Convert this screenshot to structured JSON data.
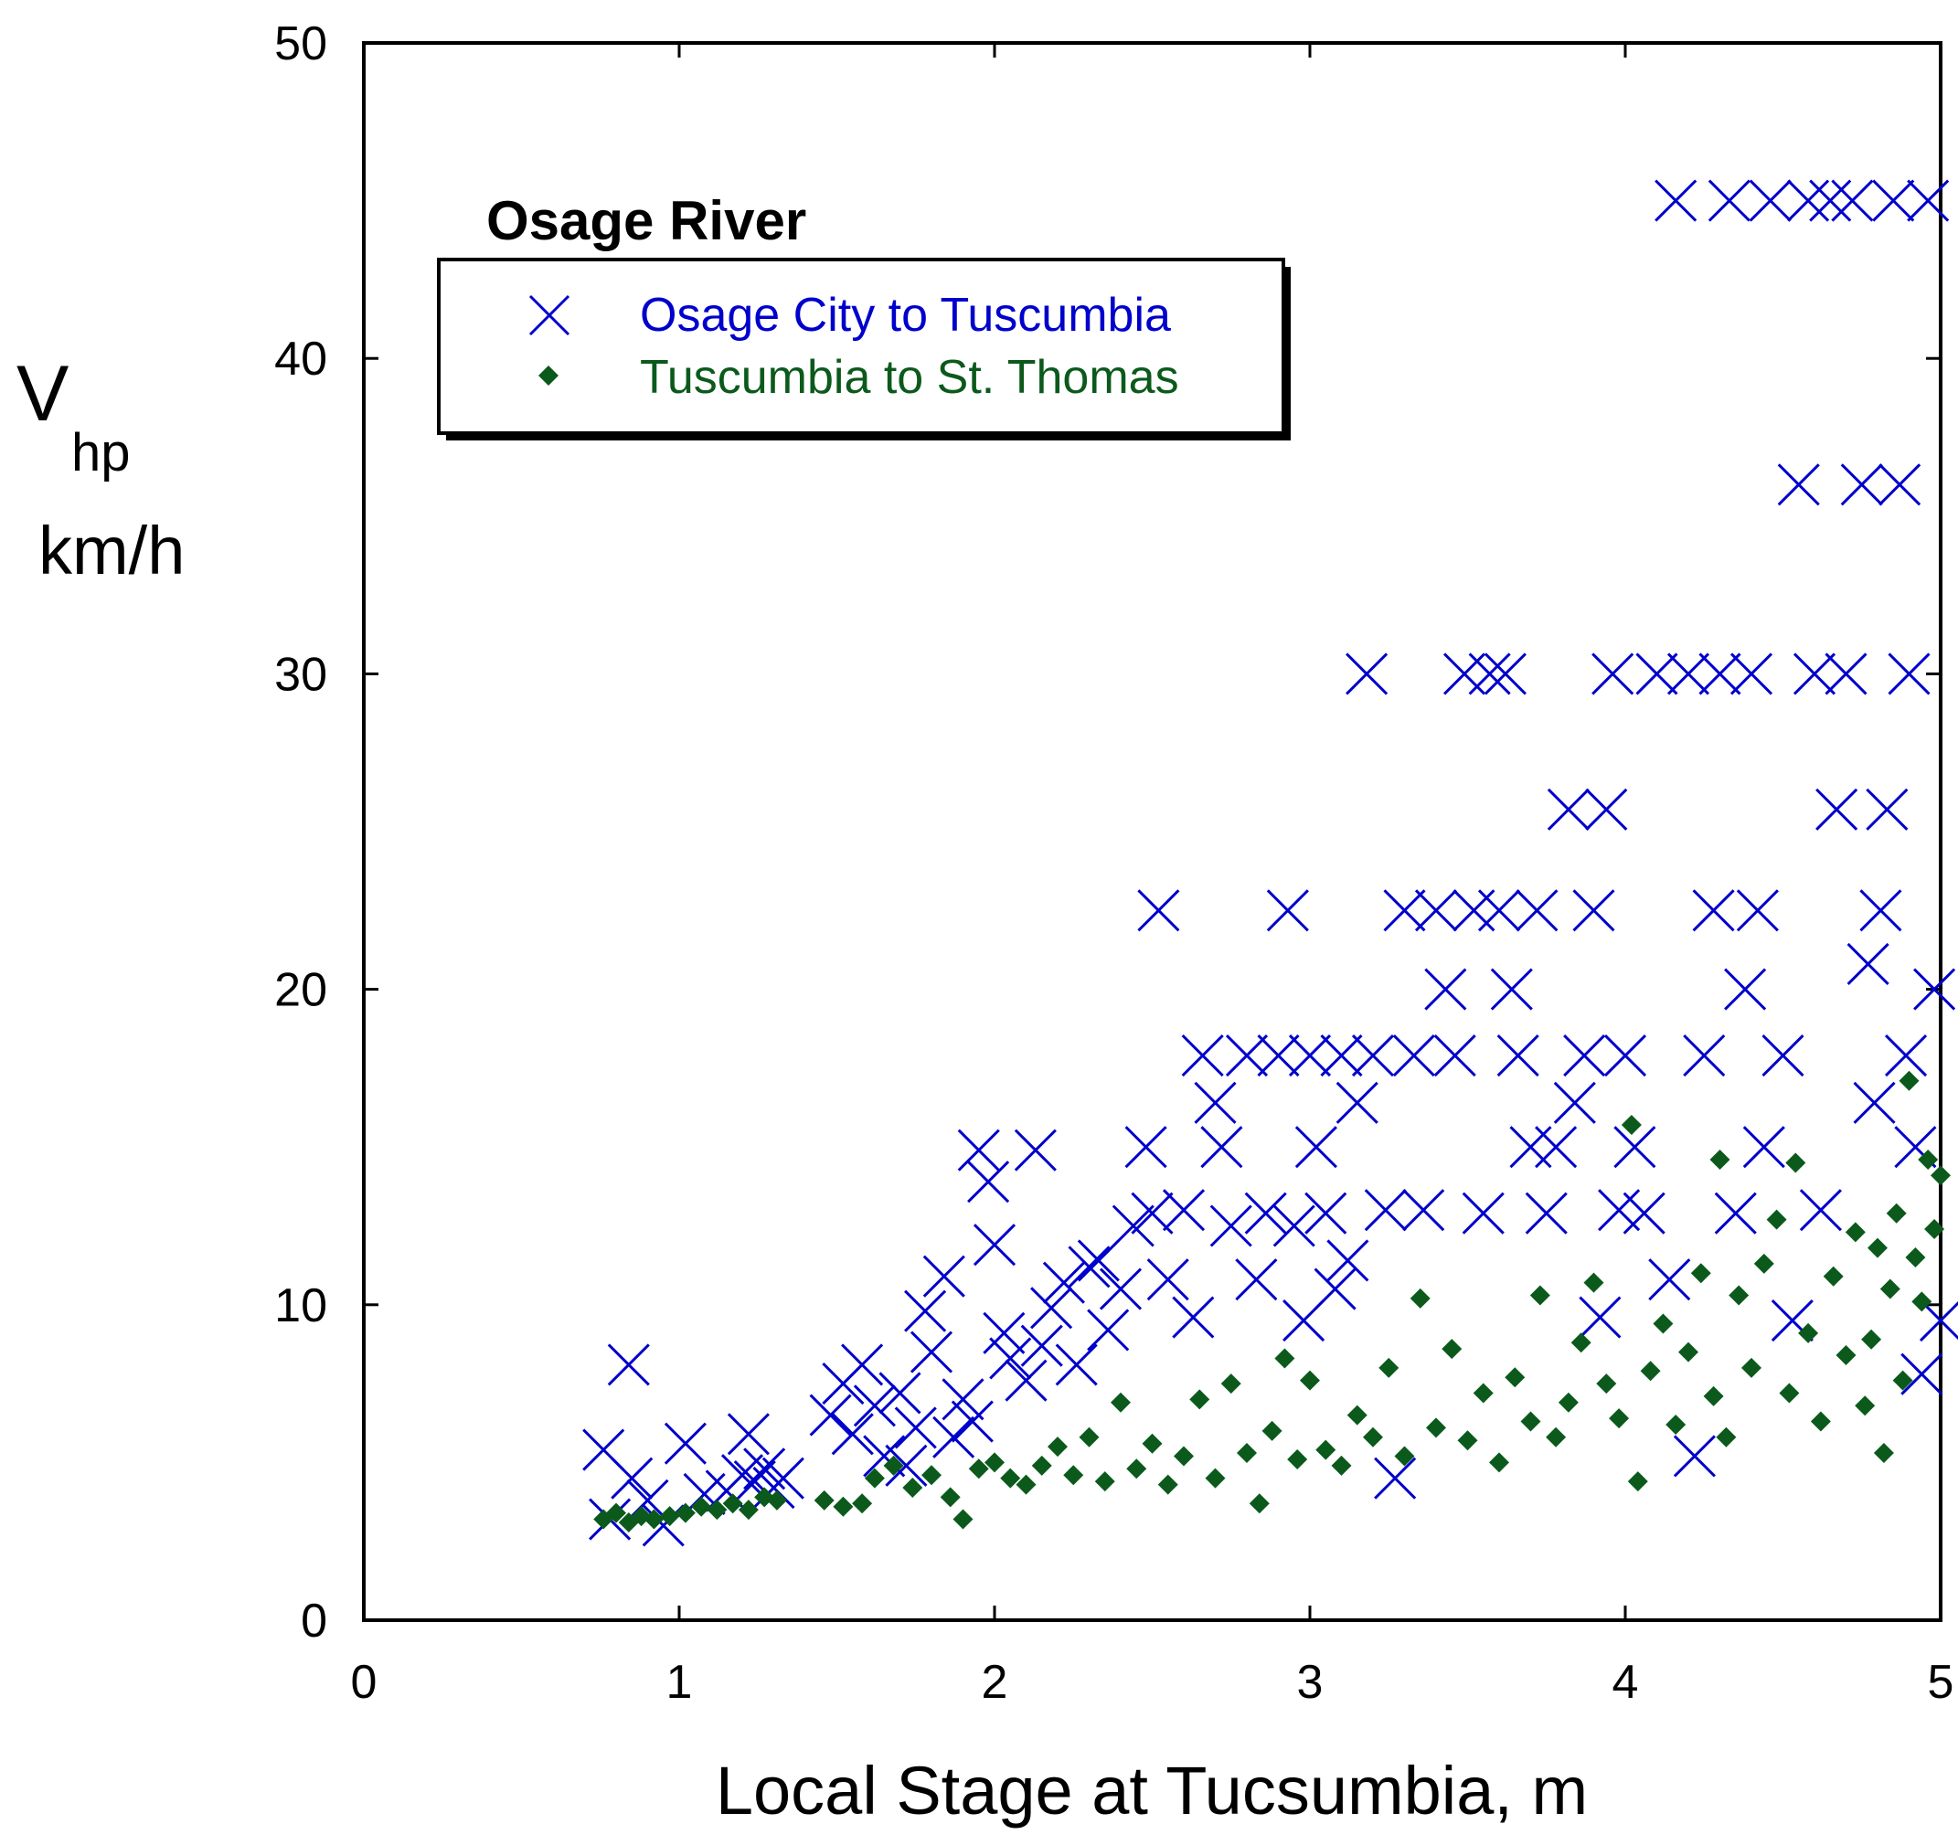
{
  "chart_data": {
    "type": "scatter",
    "title": "",
    "xlabel": "Local Stage at Tucsumbia, m",
    "ylabel": {
      "main": "V",
      "sub": "hp",
      "unit": "km/h"
    },
    "xlim": [
      0,
      5
    ],
    "ylim": [
      0,
      50
    ],
    "xticks": [
      0,
      1,
      2,
      3,
      4,
      5
    ],
    "yticks": [
      0,
      10,
      20,
      30,
      40,
      50
    ],
    "grid": false,
    "legend": {
      "title": "Osage River",
      "placement": "top-left",
      "entries": [
        {
          "label": "Osage City to Tuscumbia",
          "marker": "x",
          "color": "#0000cc"
        },
        {
          "label": "Tuscumbia to St. Thomas",
          "marker": "diamond",
          "color": "#0b5a1c"
        }
      ]
    },
    "series": [
      {
        "name": "Osage City to Tuscumbia",
        "marker": "x",
        "color": "#0000cc",
        "points": [
          [
            0.76,
            5.4
          ],
          [
            0.84,
            8.1
          ],
          [
            0.78,
            3.2
          ],
          [
            0.85,
            4.5
          ],
          [
            0.9,
            3.8
          ],
          [
            0.95,
            3.0
          ],
          [
            1.02,
            5.6
          ],
          [
            1.08,
            4.0
          ],
          [
            1.15,
            4.1
          ],
          [
            1.2,
            4.6
          ],
          [
            1.22,
            5.9
          ],
          [
            1.24,
            4.4
          ],
          [
            1.27,
            4.8
          ],
          [
            1.3,
            4.2
          ],
          [
            1.33,
            4.5
          ],
          [
            1.48,
            6.5
          ],
          [
            1.52,
            7.5
          ],
          [
            1.55,
            5.9
          ],
          [
            1.58,
            8.1
          ],
          [
            1.62,
            6.8
          ],
          [
            1.65,
            5.2
          ],
          [
            1.7,
            7.2
          ],
          [
            1.72,
            4.9
          ],
          [
            1.75,
            6.1
          ],
          [
            1.78,
            9.8
          ],
          [
            1.8,
            8.5
          ],
          [
            1.84,
            10.9
          ],
          [
            1.87,
            5.8
          ],
          [
            1.9,
            7.0
          ],
          [
            1.93,
            6.3
          ],
          [
            1.95,
            14.9
          ],
          [
            1.98,
            13.9
          ],
          [
            2.0,
            11.9
          ],
          [
            2.03,
            9.1
          ],
          [
            2.05,
            8.3
          ],
          [
            2.1,
            7.6
          ],
          [
            2.13,
            14.9
          ],
          [
            2.15,
            8.7
          ],
          [
            2.18,
            9.9
          ],
          [
            2.22,
            10.7
          ],
          [
            2.26,
            8.1
          ],
          [
            2.3,
            11.2
          ],
          [
            2.33,
            11.4
          ],
          [
            2.36,
            9.2
          ],
          [
            2.4,
            10.5
          ],
          [
            2.44,
            12.5
          ],
          [
            2.48,
            15.0
          ],
          [
            2.5,
            12.9
          ],
          [
            2.52,
            22.5
          ],
          [
            2.55,
            10.8
          ],
          [
            2.6,
            13.0
          ],
          [
            2.63,
            9.6
          ],
          [
            2.66,
            17.9
          ],
          [
            2.7,
            16.4
          ],
          [
            2.72,
            15.0
          ],
          [
            2.75,
            12.5
          ],
          [
            2.8,
            17.9
          ],
          [
            2.83,
            10.8
          ],
          [
            2.86,
            12.9
          ],
          [
            2.9,
            17.9
          ],
          [
            2.93,
            22.5
          ],
          [
            2.95,
            12.5
          ],
          [
            2.98,
            9.5
          ],
          [
            3.0,
            17.9
          ],
          [
            3.02,
            15.0
          ],
          [
            3.05,
            12.9
          ],
          [
            3.08,
            10.5
          ],
          [
            3.1,
            17.9
          ],
          [
            3.12,
            11.4
          ],
          [
            3.15,
            16.4
          ],
          [
            3.18,
            30.0
          ],
          [
            3.2,
            17.9
          ],
          [
            3.24,
            13.0
          ],
          [
            3.27,
            4.5
          ],
          [
            3.3,
            22.5
          ],
          [
            3.33,
            17.9
          ],
          [
            3.36,
            13.0
          ],
          [
            3.4,
            22.5
          ],
          [
            3.43,
            20.0
          ],
          [
            3.46,
            17.9
          ],
          [
            3.49,
            30.0
          ],
          [
            3.52,
            22.5
          ],
          [
            3.55,
            12.9
          ],
          [
            3.57,
            30.0
          ],
          [
            3.6,
            22.5
          ],
          [
            3.62,
            30.0
          ],
          [
            3.64,
            20.0
          ],
          [
            3.66,
            17.9
          ],
          [
            3.7,
            15.0
          ],
          [
            3.72,
            22.5
          ],
          [
            3.75,
            12.9
          ],
          [
            3.78,
            15.0
          ],
          [
            3.82,
            25.7
          ],
          [
            3.84,
            16.4
          ],
          [
            3.87,
            17.9
          ],
          [
            3.9,
            22.5
          ],
          [
            3.92,
            9.6
          ],
          [
            3.94,
            25.7
          ],
          [
            3.96,
            30.0
          ],
          [
            3.98,
            13.0
          ],
          [
            4.0,
            17.9
          ],
          [
            4.03,
            15.0
          ],
          [
            4.06,
            12.9
          ],
          [
            4.1,
            30.0
          ],
          [
            4.14,
            10.8
          ],
          [
            4.16,
            45.0
          ],
          [
            4.2,
            30.0
          ],
          [
            4.22,
            5.2
          ],
          [
            4.25,
            17.9
          ],
          [
            4.28,
            22.5
          ],
          [
            4.3,
            30.0
          ],
          [
            4.33,
            45.0
          ],
          [
            4.35,
            12.9
          ],
          [
            4.38,
            20.0
          ],
          [
            4.4,
            30.0
          ],
          [
            4.42,
            22.5
          ],
          [
            4.44,
            15.0
          ],
          [
            4.46,
            45.0
          ],
          [
            4.5,
            17.9
          ],
          [
            4.53,
            9.5
          ],
          [
            4.55,
            36.0
          ],
          [
            4.58,
            45.0
          ],
          [
            4.6,
            30.0
          ],
          [
            4.62,
            13.0
          ],
          [
            4.65,
            45.0
          ],
          [
            4.67,
            25.7
          ],
          [
            4.7,
            30.0
          ],
          [
            4.72,
            45.0
          ],
          [
            4.75,
            36.0
          ],
          [
            4.77,
            20.8
          ],
          [
            4.79,
            16.4
          ],
          [
            4.81,
            22.5
          ],
          [
            4.83,
            25.7
          ],
          [
            4.85,
            45.0
          ],
          [
            4.87,
            36.0
          ],
          [
            4.89,
            17.9
          ],
          [
            4.9,
            30.0
          ],
          [
            4.92,
            15.0
          ],
          [
            4.94,
            7.8
          ],
          [
            4.96,
            45.0
          ],
          [
            4.98,
            20.0
          ],
          [
            5.0,
            9.5
          ]
        ]
      },
      {
        "name": "Tuscumbia to St. Thomas",
        "marker": "diamond",
        "color": "#0b5a1c",
        "points": [
          [
            0.76,
            3.2
          ],
          [
            0.8,
            3.4
          ],
          [
            0.84,
            3.1
          ],
          [
            0.88,
            3.3
          ],
          [
            0.92,
            3.2
          ],
          [
            0.97,
            3.3
          ],
          [
            1.02,
            3.4
          ],
          [
            1.07,
            3.6
          ],
          [
            1.12,
            3.5
          ],
          [
            1.17,
            3.7
          ],
          [
            1.22,
            3.5
          ],
          [
            1.27,
            3.9
          ],
          [
            1.31,
            3.8
          ],
          [
            1.46,
            3.8
          ],
          [
            1.52,
            3.6
          ],
          [
            1.58,
            3.7
          ],
          [
            1.62,
            4.5
          ],
          [
            1.68,
            4.9
          ],
          [
            1.74,
            4.2
          ],
          [
            1.8,
            4.6
          ],
          [
            1.86,
            3.9
          ],
          [
            1.9,
            3.2
          ],
          [
            1.95,
            4.8
          ],
          [
            2.0,
            5.0
          ],
          [
            2.05,
            4.5
          ],
          [
            2.1,
            4.3
          ],
          [
            2.15,
            4.9
          ],
          [
            2.2,
            5.5
          ],
          [
            2.25,
            4.6
          ],
          [
            2.3,
            5.8
          ],
          [
            2.35,
            4.4
          ],
          [
            2.4,
            6.9
          ],
          [
            2.45,
            4.8
          ],
          [
            2.5,
            5.6
          ],
          [
            2.55,
            4.3
          ],
          [
            2.6,
            5.2
          ],
          [
            2.65,
            7.0
          ],
          [
            2.7,
            4.5
          ],
          [
            2.75,
            7.5
          ],
          [
            2.8,
            5.3
          ],
          [
            2.84,
            3.7
          ],
          [
            2.88,
            6.0
          ],
          [
            2.92,
            8.3
          ],
          [
            2.96,
            5.1
          ],
          [
            3.0,
            7.6
          ],
          [
            3.05,
            5.4
          ],
          [
            3.1,
            4.9
          ],
          [
            3.15,
            6.5
          ],
          [
            3.2,
            5.8
          ],
          [
            3.25,
            8.0
          ],
          [
            3.3,
            5.2
          ],
          [
            3.35,
            10.2
          ],
          [
            3.4,
            6.1
          ],
          [
            3.45,
            8.6
          ],
          [
            3.5,
            5.7
          ],
          [
            3.55,
            7.2
          ],
          [
            3.6,
            5.0
          ],
          [
            3.65,
            7.7
          ],
          [
            3.7,
            6.3
          ],
          [
            3.73,
            10.3
          ],
          [
            3.78,
            5.8
          ],
          [
            3.82,
            6.9
          ],
          [
            3.86,
            8.8
          ],
          [
            3.9,
            10.7
          ],
          [
            3.94,
            7.5
          ],
          [
            3.98,
            6.4
          ],
          [
            4.02,
            15.7
          ],
          [
            4.04,
            4.4
          ],
          [
            4.08,
            7.9
          ],
          [
            4.12,
            9.4
          ],
          [
            4.16,
            6.2
          ],
          [
            4.2,
            8.5
          ],
          [
            4.24,
            11.0
          ],
          [
            4.28,
            7.1
          ],
          [
            4.3,
            14.6
          ],
          [
            4.32,
            5.8
          ],
          [
            4.36,
            10.3
          ],
          [
            4.4,
            8.0
          ],
          [
            4.44,
            11.3
          ],
          [
            4.48,
            12.7
          ],
          [
            4.52,
            7.2
          ],
          [
            4.54,
            14.5
          ],
          [
            4.58,
            9.1
          ],
          [
            4.62,
            6.3
          ],
          [
            4.66,
            10.9
          ],
          [
            4.7,
            8.4
          ],
          [
            4.73,
            12.3
          ],
          [
            4.76,
            6.8
          ],
          [
            4.78,
            8.9
          ],
          [
            4.8,
            11.8
          ],
          [
            4.82,
            5.3
          ],
          [
            4.84,
            10.5
          ],
          [
            4.86,
            12.9
          ],
          [
            4.88,
            7.6
          ],
          [
            4.9,
            17.1
          ],
          [
            4.92,
            11.5
          ],
          [
            4.94,
            10.1
          ],
          [
            4.96,
            14.6
          ],
          [
            4.98,
            12.4
          ],
          [
            5.0,
            14.1
          ]
        ]
      }
    ]
  }
}
